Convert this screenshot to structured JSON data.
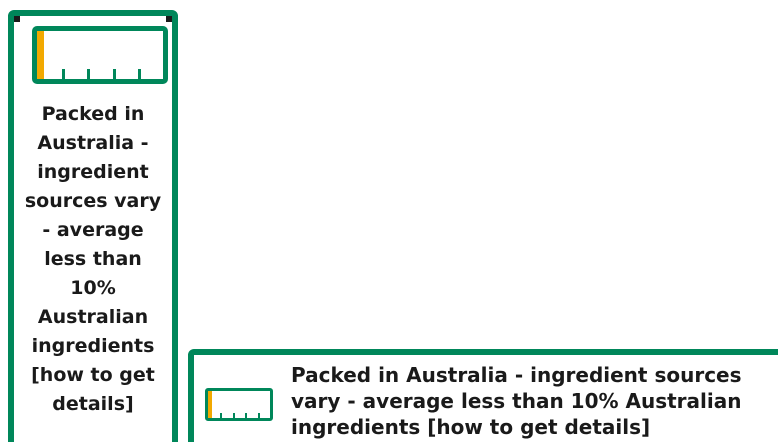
{
  "colors": {
    "border_green": "#00875a",
    "fill_gold": "#f2a900",
    "text": "#1a1a1a",
    "background": "#ffffff"
  },
  "icon": {
    "name": "australian-ingredients-bar-icon",
    "australian_ingredients_fraction": 0.05,
    "tick_count": 4
  },
  "vertical_label": {
    "lines": [
      "Packed in",
      "Australia -",
      "ingredient",
      "sources vary",
      "- average",
      "less than",
      "10%",
      "Australian",
      "ingredients",
      "[how to get",
      "details]"
    ]
  },
  "horizontal_label": {
    "lines": [
      "Packed in Australia - ingredient sources",
      "vary - average less than 10% Australian",
      "ingredients [how to get details]"
    ]
  }
}
